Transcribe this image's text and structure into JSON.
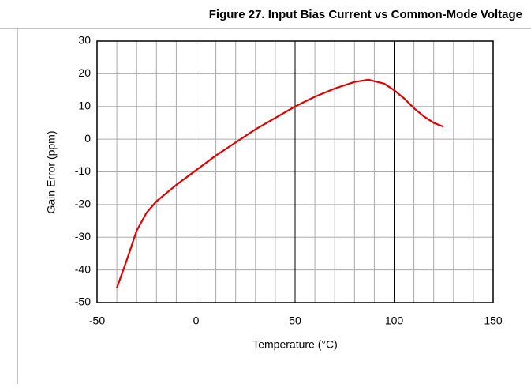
{
  "chart_data": {
    "type": "line",
    "title": "Figure 27. Input Bias Current vs Common-Mode Voltage",
    "x_label": "Temperature (°C)",
    "y_label": "Gain Error (ppm)",
    "x": [
      -40,
      -35,
      -30,
      -25,
      -20,
      -10,
      0,
      10,
      20,
      30,
      40,
      50,
      60,
      70,
      80,
      87,
      95,
      100,
      105,
      110,
      115,
      120,
      125
    ],
    "series": [
      {
        "color": "#e00000",
        "values": [
          -45.5,
          -37,
          -28,
          -22.5,
          -19,
          -14,
          -9.5,
          -5,
          -1,
          3,
          6.5,
          10,
          13,
          15.5,
          17.5,
          18.2,
          17,
          15,
          12.5,
          9.5,
          7,
          5,
          3.8
        ]
      }
    ],
    "xlim": [
      -50,
      150
    ],
    "xticks": [
      -50,
      0,
      50,
      100,
      150
    ],
    "x_minor_ticks": [
      -40,
      -30,
      -20,
      -10,
      10,
      20,
      30,
      40,
      60,
      70,
      80,
      90,
      110,
      120,
      130,
      140
    ],
    "ylim": [
      -50,
      30
    ],
    "yticks": [
      -50,
      -40,
      -30,
      -20,
      -10,
      0,
      10,
      20,
      30
    ],
    "grid": true
  }
}
